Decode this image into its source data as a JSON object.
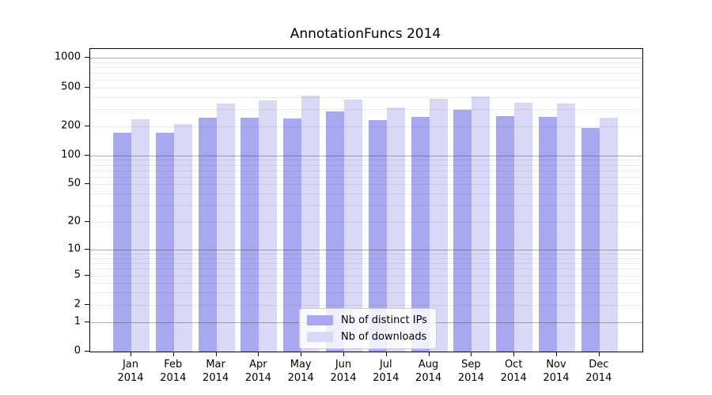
{
  "chart_data": {
    "type": "bar",
    "title": "AnnotationFuncs 2014",
    "year": "2014",
    "categories": [
      "Jan",
      "Feb",
      "Mar",
      "Apr",
      "May",
      "Jun",
      "Jul",
      "Aug",
      "Sep",
      "Oct",
      "Nov",
      "Dec"
    ],
    "series": [
      {
        "name": "Nb of distinct IPs",
        "color": "#a8a8f0",
        "values": [
          170,
          170,
          245,
          245,
          240,
          285,
          230,
          250,
          295,
          255,
          250,
          190
        ]
      },
      {
        "name": "Nb of downloads",
        "color": "#d9d9f7",
        "values": [
          235,
          210,
          340,
          370,
          410,
          375,
          310,
          380,
          405,
          350,
          340,
          245
        ]
      }
    ],
    "yscale": "log1p",
    "yticks": [
      0,
      1,
      2,
      5,
      10,
      20,
      50,
      100,
      200,
      500,
      1000
    ],
    "ylim": [
      0,
      1233
    ],
    "xlabel": "",
    "ylabel": "",
    "grid": {
      "show": true,
      "major_values": [
        1,
        10,
        100,
        1000
      ],
      "minor_values": [
        2,
        3,
        4,
        5,
        6,
        7,
        8,
        9,
        20,
        30,
        40,
        50,
        60,
        70,
        80,
        90,
        200,
        300,
        400,
        500,
        600,
        700,
        800,
        900
      ]
    },
    "legend_position": "lower center"
  },
  "colors": {
    "bar_distinct_ips": "#a8a8f0",
    "bar_downloads": "#d9d9f7",
    "grid_major": "rgba(64,64,64,0.42)",
    "grid_minor": "rgba(0,0,0,0.08)",
    "axis": "#000000",
    "legend_border": "#cccccc",
    "legend_background": "rgba(255,255,255,0.8)"
  }
}
